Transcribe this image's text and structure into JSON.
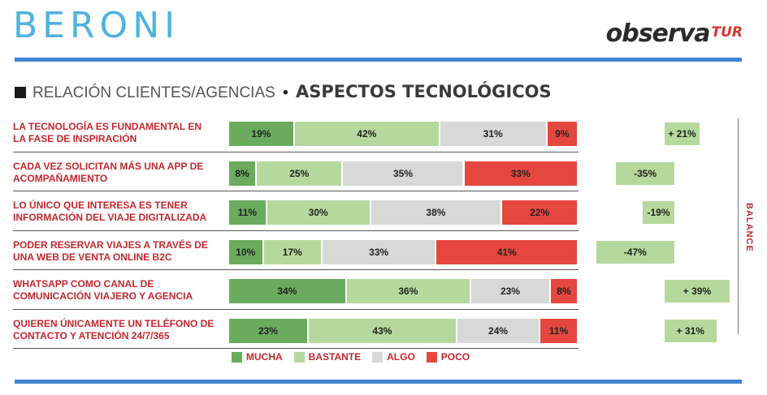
{
  "header": {
    "brand": "BERONI",
    "partner_main": "observa",
    "partner_suffix": "TUR"
  },
  "subtitle": {
    "prefix": "RELACIÓN CLIENTES/AGENCIAS",
    "separator": "•",
    "main": "ASPECTOS TECNOLÓGICOS"
  },
  "chart_data": {
    "type": "bar",
    "stacked": true,
    "orientation": "horizontal",
    "categories": [
      "LA TECNOLOGÍA ES FUNDAMENTAL EN LA FASE DE INSPIRACIÓN",
      "CADA VEZ SOLICITAN MÁS UNA APP DE ACOMPAÑAMIENTO",
      "LO ÚNICO QUE INTERESA ES TENER INFORMACIÓN DEL VIAJE DIGITALIZADA",
      "PODER RESERVAR VIAJES A TRAVÉS DE UNA WEB DE VENTA ONLINE B2C",
      "WHATSAPP COMO CANAL DE COMUNICACIÓN VIAJERO Y AGENCIA",
      "QUIEREN ÚNICAMENTE UN TELÉFONO DE CONTACTO Y ATENCIÓN 24/7/365"
    ],
    "category_lines": [
      [
        "LA TECNOLOGÍA ES FUNDAMENTAL EN",
        "LA FASE DE INSPIRACIÓN"
      ],
      [
        "CADA VEZ SOLICITAN MÁS UNA APP DE",
        "ACOMPAÑAMIENTO"
      ],
      [
        "LO ÚNICO QUE INTERESA ES TENER",
        "INFORMACIÓN DEL VIAJE DIGITALIZADA"
      ],
      [
        "PODER RESERVAR VIAJES A TRAVÉS DE",
        "UNA WEB DE VENTA ONLINE B2C"
      ],
      [
        "WHATSAPP COMO CANAL DE",
        "COMUNICACIÓN VIAJERO Y AGENCIA"
      ],
      [
        "QUIEREN ÚNICAMENTE UN TELÉFONO DE",
        "CONTACTO Y ATENCIÓN 24/7/365"
      ]
    ],
    "series": [
      {
        "name": "MUCHA",
        "color": "#6aab5e",
        "values": [
          19,
          8,
          11,
          10,
          34,
          23
        ]
      },
      {
        "name": "BASTANTE",
        "color": "#b5d99c",
        "values": [
          42,
          25,
          30,
          17,
          36,
          43
        ]
      },
      {
        "name": "ALGO",
        "color": "#d8d8d8",
        "values": [
          31,
          35,
          38,
          33,
          23,
          24
        ]
      },
      {
        "name": "POCO",
        "color": "#e5473f",
        "values": [
          9,
          33,
          22,
          41,
          8,
          11
        ]
      }
    ],
    "value_suffix": "%",
    "balance": {
      "label": "BALANCE",
      "values": [
        21,
        -35,
        -19,
        -47,
        39,
        31
      ],
      "labels": [
        "+ 21%",
        "-35%",
        "-19%",
        "-47%",
        "+ 39%",
        "+ 31%"
      ],
      "color": "#b5d99c"
    },
    "legend_position": "bottom"
  }
}
